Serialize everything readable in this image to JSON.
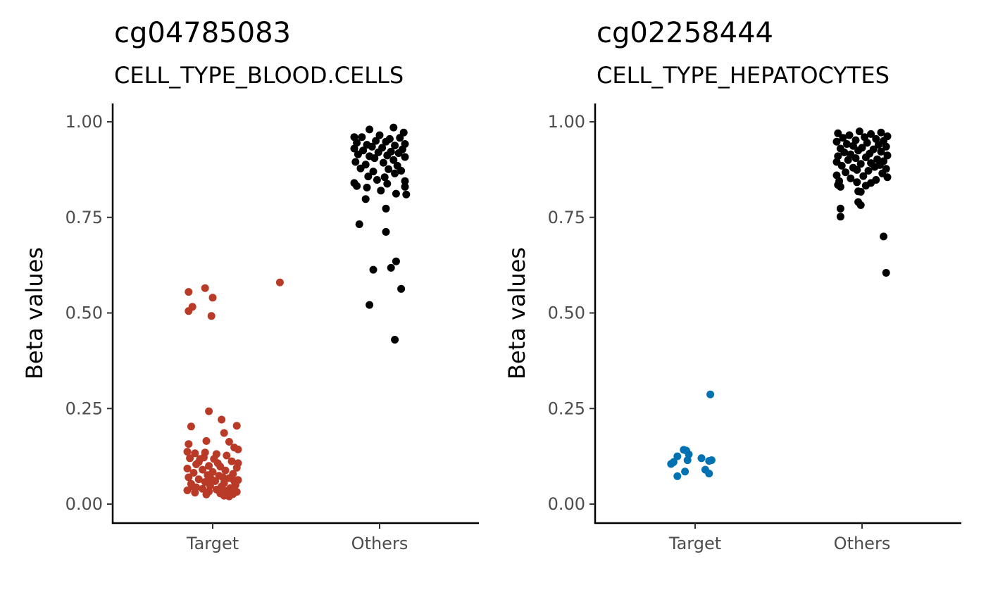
{
  "chart_data": [
    {
      "type": "scatter",
      "title": "cg04785083",
      "subtitle": "CELL_TYPE_BLOOD.CELLS",
      "xlabel": "",
      "ylabel": "Beta values",
      "categories": [
        "Target",
        "Others"
      ],
      "ylim": [
        -0.05,
        1.05
      ],
      "yticks": [
        "0.00",
        "0.25",
        "0.50",
        "0.75",
        "1.00"
      ],
      "yticks_values": [
        0,
        0.25,
        0.5,
        0.75,
        1.0
      ],
      "grid": false,
      "series": [
        {
          "category": "Target",
          "color": "#b83a27",
          "points": [
            {
              "x": 0.53,
              "y": 0.58
            },
            {
              "x": -0.06,
              "y": 0.565
            },
            {
              "x": -0.19,
              "y": 0.555
            },
            {
              "x": 0.0,
              "y": 0.54
            },
            {
              "x": -0.16,
              "y": 0.516
            },
            {
              "x": -0.19,
              "y": 0.505
            },
            {
              "x": -0.01,
              "y": 0.492
            },
            {
              "x": -0.03,
              "y": 0.243
            },
            {
              "x": 0.07,
              "y": 0.221
            },
            {
              "x": -0.17,
              "y": 0.203
            },
            {
              "x": 0.19,
              "y": 0.205
            },
            {
              "x": 0.09,
              "y": 0.186
            },
            {
              "x": -0.05,
              "y": 0.165
            },
            {
              "x": 0.13,
              "y": 0.163
            },
            {
              "x": -0.19,
              "y": 0.157
            },
            {
              "x": 0.17,
              "y": 0.148
            },
            {
              "x": 0.2,
              "y": 0.143
            },
            {
              "x": -0.2,
              "y": 0.137
            },
            {
              "x": -0.14,
              "y": 0.133
            },
            {
              "x": -0.06,
              "y": 0.135
            },
            {
              "x": 0.03,
              "y": 0.131
            },
            {
              "x": 0.11,
              "y": 0.127
            },
            {
              "x": -0.18,
              "y": 0.12
            },
            {
              "x": -0.1,
              "y": 0.118
            },
            {
              "x": 0.01,
              "y": 0.118
            },
            {
              "x": 0.15,
              "y": 0.112
            },
            {
              "x": 0.2,
              "y": 0.107
            },
            {
              "x": -0.13,
              "y": 0.104
            },
            {
              "x": -0.03,
              "y": 0.1
            },
            {
              "x": 0.06,
              "y": 0.098
            },
            {
              "x": 0.19,
              "y": 0.095
            },
            {
              "x": -0.2,
              "y": 0.093
            },
            {
              "x": -0.08,
              "y": 0.09
            },
            {
              "x": 0.1,
              "y": 0.088
            },
            {
              "x": 0.0,
              "y": 0.084
            },
            {
              "x": -0.15,
              "y": 0.082
            },
            {
              "x": 0.16,
              "y": 0.079
            },
            {
              "x": -0.04,
              "y": 0.076
            },
            {
              "x": 0.05,
              "y": 0.074
            },
            {
              "x": -0.19,
              "y": 0.07
            },
            {
              "x": 0.13,
              "y": 0.068
            },
            {
              "x": -0.11,
              "y": 0.065
            },
            {
              "x": 0.2,
              "y": 0.063
            },
            {
              "x": 0.02,
              "y": 0.06
            },
            {
              "x": -0.06,
              "y": 0.058
            },
            {
              "x": 0.09,
              "y": 0.055
            },
            {
              "x": -0.17,
              "y": 0.053
            },
            {
              "x": 0.18,
              "y": 0.05
            },
            {
              "x": -0.02,
              "y": 0.048
            },
            {
              "x": 0.07,
              "y": 0.046
            },
            {
              "x": -0.13,
              "y": 0.044
            },
            {
              "x": 0.14,
              "y": 0.042
            },
            {
              "x": -0.08,
              "y": 0.04
            },
            {
              "x": 0.03,
              "y": 0.038
            },
            {
              "x": -0.2,
              "y": 0.036
            },
            {
              "x": 0.11,
              "y": 0.035
            },
            {
              "x": -0.03,
              "y": 0.033
            },
            {
              "x": 0.19,
              "y": 0.032
            },
            {
              "x": -0.14,
              "y": 0.03
            },
            {
              "x": 0.06,
              "y": 0.028
            },
            {
              "x": 0.16,
              "y": 0.026
            },
            {
              "x": -0.05,
              "y": 0.025
            },
            {
              "x": 0.09,
              "y": 0.022
            },
            {
              "x": 0.13,
              "y": 0.02
            },
            {
              "x": -0.11,
              "y": 0.11
            },
            {
              "x": 0.04,
              "y": 0.107
            },
            {
              "x": -0.01,
              "y": 0.065
            },
            {
              "x": 0.17,
              "y": 0.06
            },
            {
              "x": -0.16,
              "y": 0.046
            },
            {
              "x": 0.08,
              "y": 0.07
            },
            {
              "x": -0.07,
              "y": 0.122
            }
          ]
        },
        {
          "category": "Others",
          "color": "#000000",
          "points": [
            {
              "x": 0.11,
              "y": 0.985
            },
            {
              "x": -0.08,
              "y": 0.98
            },
            {
              "x": 0.19,
              "y": 0.972
            },
            {
              "x": -0.2,
              "y": 0.96
            },
            {
              "x": 0.0,
              "y": 0.965
            },
            {
              "x": 0.08,
              "y": 0.955
            },
            {
              "x": -0.14,
              "y": 0.96
            },
            {
              "x": 0.16,
              "y": 0.958
            },
            {
              "x": -0.03,
              "y": 0.95
            },
            {
              "x": 0.05,
              "y": 0.948
            },
            {
              "x": -0.18,
              "y": 0.945
            },
            {
              "x": 0.2,
              "y": 0.942
            },
            {
              "x": -0.1,
              "y": 0.94
            },
            {
              "x": 0.12,
              "y": 0.938
            },
            {
              "x": -0.06,
              "y": 0.935
            },
            {
              "x": 0.02,
              "y": 0.932
            },
            {
              "x": -0.2,
              "y": 0.93
            },
            {
              "x": 0.18,
              "y": 0.928
            },
            {
              "x": -0.13,
              "y": 0.925
            },
            {
              "x": 0.09,
              "y": 0.922
            },
            {
              "x": -0.01,
              "y": 0.92
            },
            {
              "x": 0.15,
              "y": 0.918
            },
            {
              "x": -0.17,
              "y": 0.915
            },
            {
              "x": 0.06,
              "y": 0.912
            },
            {
              "x": -0.08,
              "y": 0.91
            },
            {
              "x": 0.2,
              "y": 0.908
            },
            {
              "x": -0.04,
              "y": 0.905
            },
            {
              "x": 0.11,
              "y": 0.9
            },
            {
              "x": -0.19,
              "y": 0.895
            },
            {
              "x": 0.03,
              "y": 0.893
            },
            {
              "x": -0.11,
              "y": 0.888
            },
            {
              "x": 0.14,
              "y": 0.885
            },
            {
              "x": -0.15,
              "y": 0.878
            },
            {
              "x": 0.07,
              "y": 0.876
            },
            {
              "x": 0.17,
              "y": 0.872
            },
            {
              "x": -0.05,
              "y": 0.87
            },
            {
              "x": 0.12,
              "y": 0.865
            },
            {
              "x": -0.09,
              "y": 0.857
            },
            {
              "x": 0.04,
              "y": 0.855
            },
            {
              "x": -0.02,
              "y": 0.848
            },
            {
              "x": 0.2,
              "y": 0.845
            },
            {
              "x": -0.2,
              "y": 0.84
            },
            {
              "x": 0.06,
              "y": 0.838
            },
            {
              "x": -0.18,
              "y": 0.832
            },
            {
              "x": 0.2,
              "y": 0.83
            },
            {
              "x": 0.01,
              "y": 0.82
            },
            {
              "x": 0.13,
              "y": 0.812
            },
            {
              "x": 0.21,
              "y": 0.81
            },
            {
              "x": -0.1,
              "y": 0.828
            },
            {
              "x": -0.11,
              "y": 0.798
            },
            {
              "x": 0.05,
              "y": 0.773
            },
            {
              "x": -0.16,
              "y": 0.732
            },
            {
              "x": 0.05,
              "y": 0.712
            },
            {
              "x": 0.13,
              "y": 0.635
            },
            {
              "x": 0.09,
              "y": 0.618
            },
            {
              "x": -0.05,
              "y": 0.613
            },
            {
              "x": 0.17,
              "y": 0.563
            },
            {
              "x": -0.08,
              "y": 0.521
            },
            {
              "x": 0.12,
              "y": 0.43
            }
          ]
        }
      ]
    },
    {
      "type": "scatter",
      "title": "cg02258444",
      "subtitle": "CELL_TYPE_HEPATOCYTES",
      "xlabel": "",
      "ylabel": "Beta values",
      "categories": [
        "Target",
        "Others"
      ],
      "ylim": [
        -0.05,
        1.05
      ],
      "yticks": [
        "0.00",
        "0.25",
        "0.50",
        "0.75",
        "1.00"
      ],
      "yticks_values": [
        0,
        0.25,
        0.5,
        0.75,
        1.0
      ],
      "grid": false,
      "series": [
        {
          "category": "Target",
          "color": "#0072b2",
          "points": [
            {
              "x": 0.12,
              "y": 0.287
            },
            {
              "x": -0.09,
              "y": 0.142
            },
            {
              "x": -0.07,
              "y": 0.14
            },
            {
              "x": -0.05,
              "y": 0.13
            },
            {
              "x": -0.14,
              "y": 0.125
            },
            {
              "x": 0.05,
              "y": 0.12
            },
            {
              "x": -0.06,
              "y": 0.115
            },
            {
              "x": 0.13,
              "y": 0.115
            },
            {
              "x": 0.11,
              "y": 0.113
            },
            {
              "x": -0.17,
              "y": 0.11
            },
            {
              "x": -0.19,
              "y": 0.105
            },
            {
              "x": 0.08,
              "y": 0.09
            },
            {
              "x": -0.08,
              "y": 0.085
            },
            {
              "x": 0.11,
              "y": 0.08
            },
            {
              "x": -0.14,
              "y": 0.073
            }
          ]
        },
        {
          "category": "Others",
          "color": "#000000",
          "points": [
            {
              "x": -0.02,
              "y": 0.975
            },
            {
              "x": 0.15,
              "y": 0.972
            },
            {
              "x": -0.19,
              "y": 0.97
            },
            {
              "x": 0.07,
              "y": 0.968
            },
            {
              "x": -0.1,
              "y": 0.965
            },
            {
              "x": 0.2,
              "y": 0.962
            },
            {
              "x": 0.02,
              "y": 0.96
            },
            {
              "x": -0.15,
              "y": 0.958
            },
            {
              "x": 0.11,
              "y": 0.955
            },
            {
              "x": -0.05,
              "y": 0.952
            },
            {
              "x": 0.17,
              "y": 0.95
            },
            {
              "x": -0.2,
              "y": 0.948
            },
            {
              "x": 0.04,
              "y": 0.945
            },
            {
              "x": -0.12,
              "y": 0.942
            },
            {
              "x": 0.13,
              "y": 0.94
            },
            {
              "x": -0.07,
              "y": 0.937
            },
            {
              "x": 0.19,
              "y": 0.935
            },
            {
              "x": 0.0,
              "y": 0.932
            },
            {
              "x": -0.17,
              "y": 0.93
            },
            {
              "x": 0.09,
              "y": 0.928
            },
            {
              "x": -0.03,
              "y": 0.925
            },
            {
              "x": 0.15,
              "y": 0.922
            },
            {
              "x": -0.14,
              "y": 0.92
            },
            {
              "x": 0.06,
              "y": 0.917
            },
            {
              "x": -0.09,
              "y": 0.915
            },
            {
              "x": 0.2,
              "y": 0.912
            },
            {
              "x": -0.19,
              "y": 0.91
            },
            {
              "x": 0.03,
              "y": 0.907
            },
            {
              "x": -0.05,
              "y": 0.905
            },
            {
              "x": 0.12,
              "y": 0.902
            },
            {
              "x": -0.11,
              "y": 0.9
            },
            {
              "x": 0.17,
              "y": 0.897
            },
            {
              "x": -0.2,
              "y": 0.895
            },
            {
              "x": 0.07,
              "y": 0.892
            },
            {
              "x": -0.01,
              "y": 0.89
            },
            {
              "x": 0.14,
              "y": 0.887
            },
            {
              "x": -0.16,
              "y": 0.885
            },
            {
              "x": 0.1,
              "y": 0.882
            },
            {
              "x": -0.07,
              "y": 0.88
            },
            {
              "x": 0.19,
              "y": 0.877
            },
            {
              "x": -0.04,
              "y": 0.874
            },
            {
              "x": 0.05,
              "y": 0.872
            },
            {
              "x": -0.13,
              "y": 0.868
            },
            {
              "x": 0.16,
              "y": 0.865
            },
            {
              "x": -0.2,
              "y": 0.86
            },
            {
              "x": 0.01,
              "y": 0.858
            },
            {
              "x": 0.2,
              "y": 0.855
            },
            {
              "x": -0.09,
              "y": 0.852
            },
            {
              "x": 0.11,
              "y": 0.848
            },
            {
              "x": -0.18,
              "y": 0.845
            },
            {
              "x": -0.04,
              "y": 0.842
            },
            {
              "x": 0.07,
              "y": 0.84
            },
            {
              "x": -0.19,
              "y": 0.835
            },
            {
              "x": 0.03,
              "y": 0.833
            },
            {
              "x": -0.17,
              "y": 0.83
            },
            {
              "x": -0.03,
              "y": 0.818
            },
            {
              "x": -0.01,
              "y": 0.817
            },
            {
              "x": -0.03,
              "y": 0.79
            },
            {
              "x": -0.01,
              "y": 0.782
            },
            {
              "x": -0.17,
              "y": 0.773
            },
            {
              "x": -0.17,
              "y": 0.752
            },
            {
              "x": 0.17,
              "y": 0.7
            },
            {
              "x": 0.19,
              "y": 0.605
            }
          ]
        }
      ]
    }
  ]
}
